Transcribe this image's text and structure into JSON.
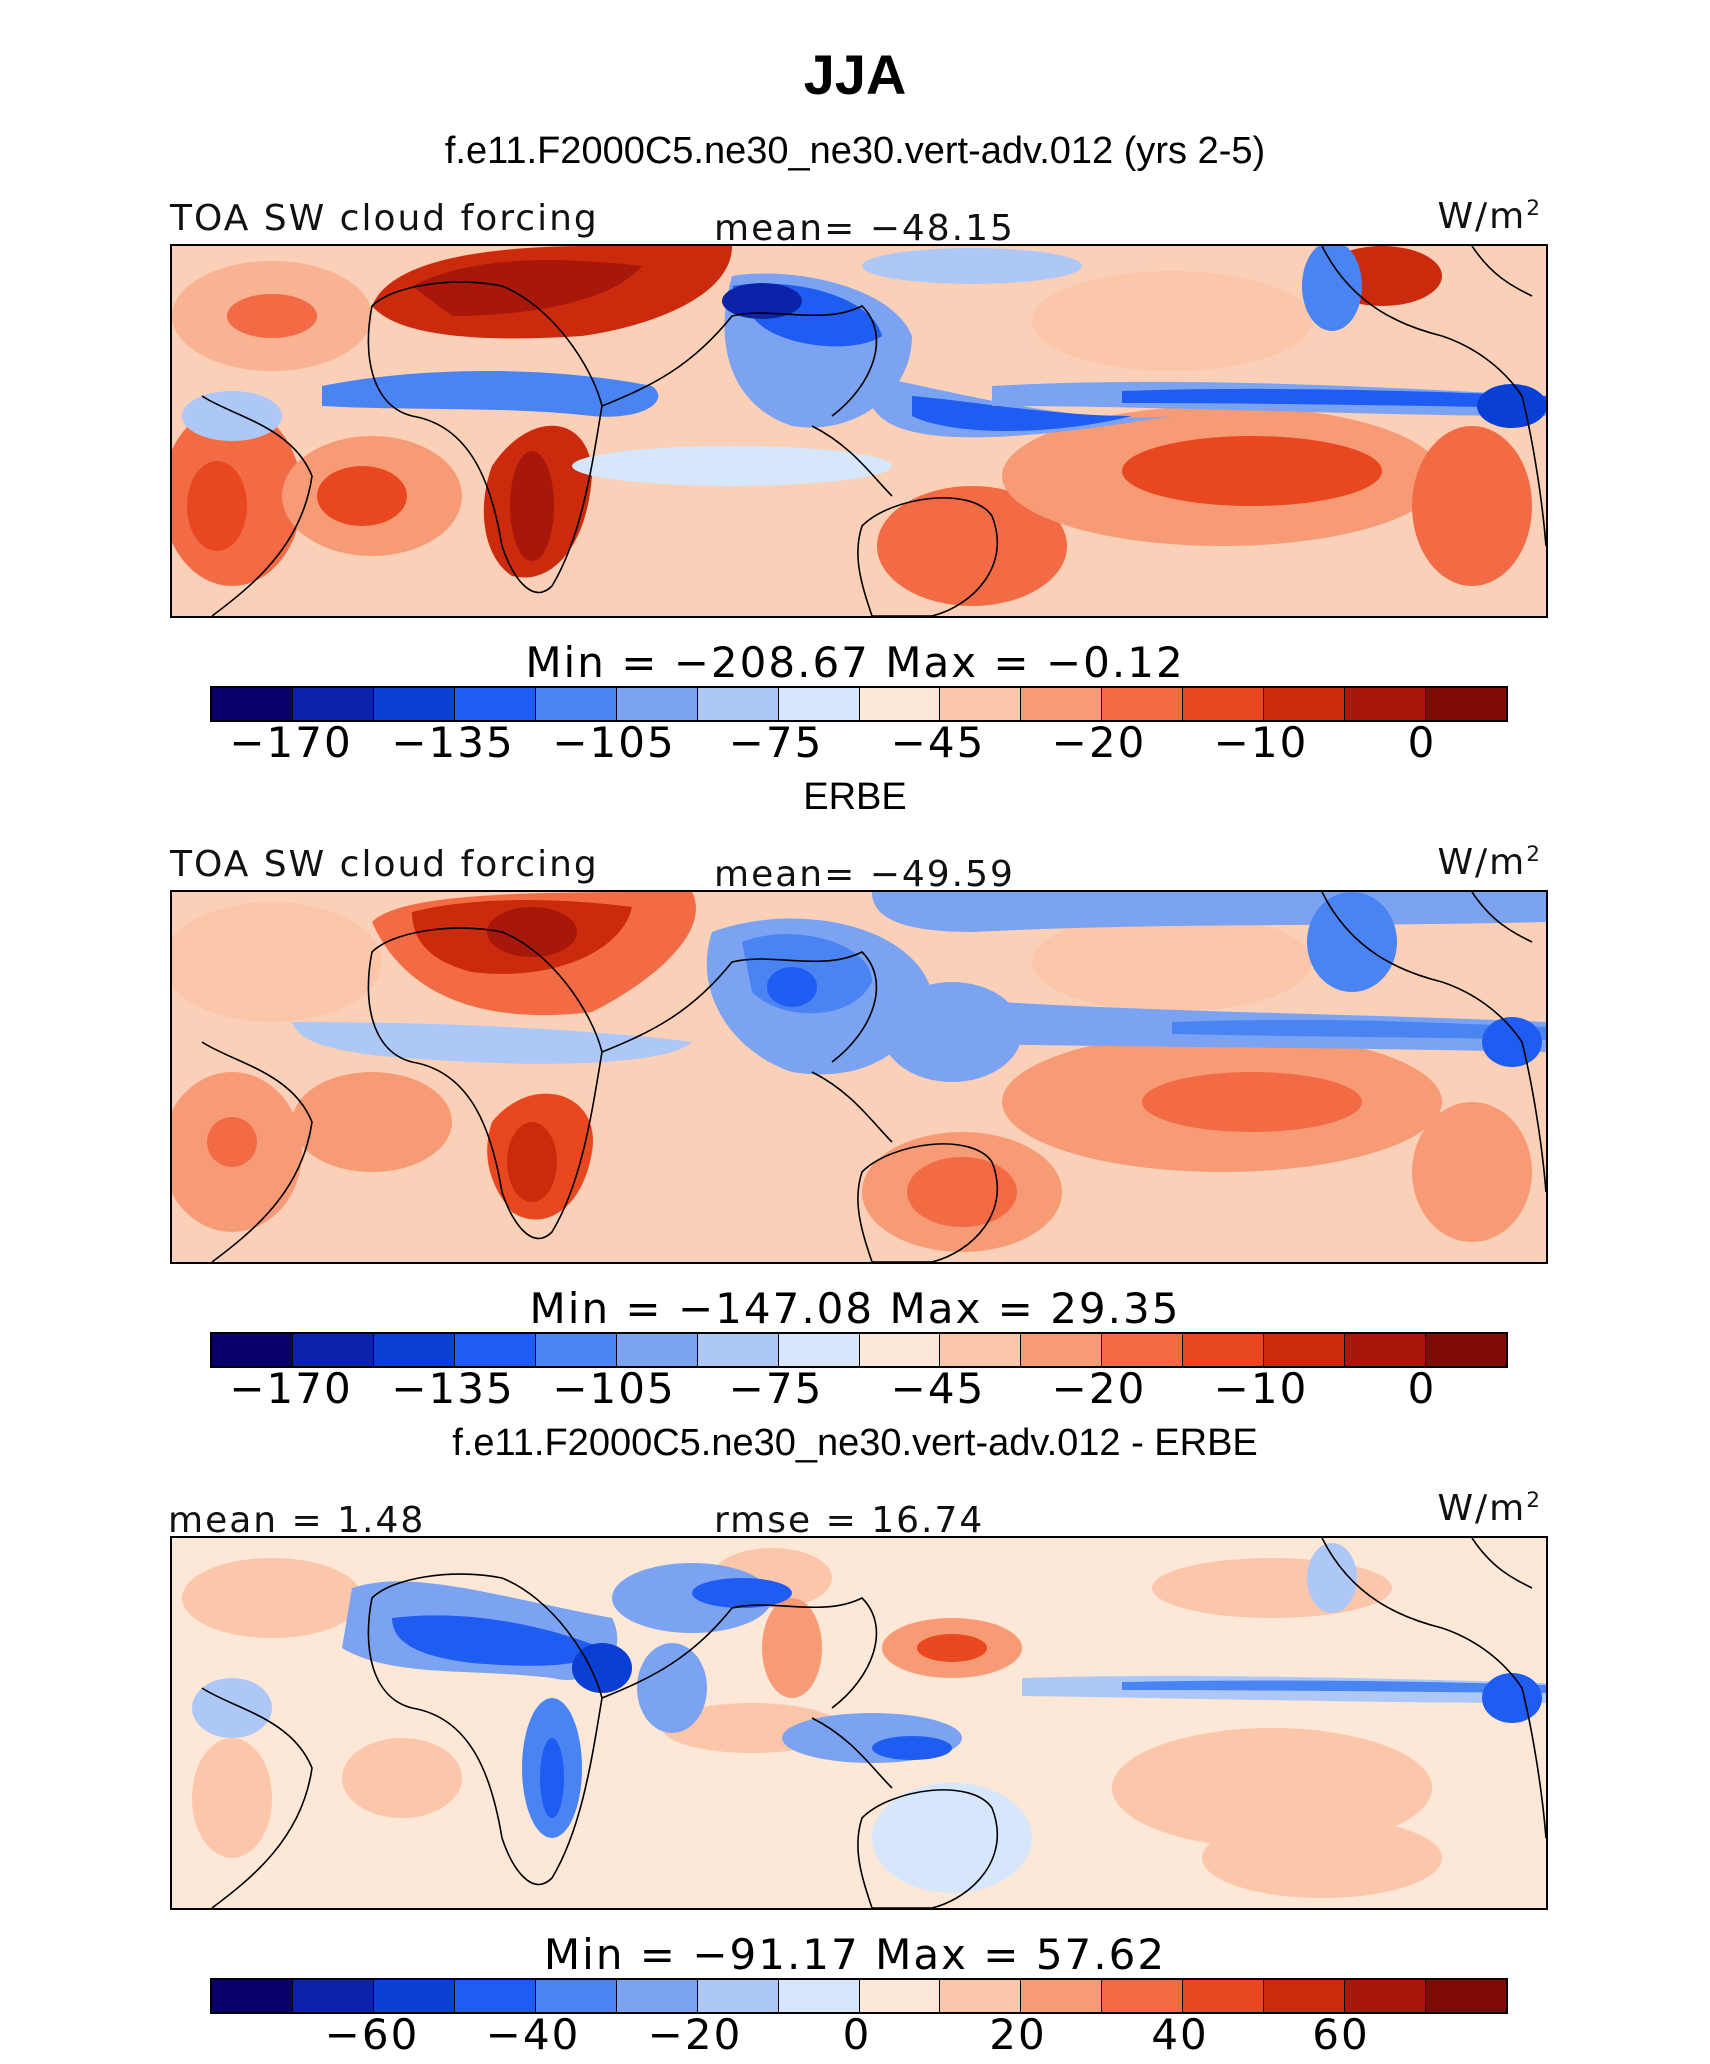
{
  "figure": {
    "title": "JJA",
    "colors": [
      "#08006b",
      "#0a23a8",
      "#0a3fd6",
      "#1f5cf2",
      "#4a83f2",
      "#7ba3f2",
      "#adc8f7",
      "#d6e6fb",
      "#fde7d6",
      "#fbc6aa",
      "#f79b76",
      "#f26b45",
      "#e8471f",
      "#cc2a0d",
      "#a8180a",
      "#800a05"
    ]
  },
  "panels": [
    {
      "case_title": "f.e11.F2000C5.ne30_ne30.vert-adv.012 (yrs 2-5)",
      "left_label": "TOA SW cloud forcing",
      "center_label": "mean= −48.15",
      "units": "W/m",
      "units_sup": "2",
      "minmax": "Min = −208.67 Max = −0.12",
      "colorbar_ticks": [
        "−170",
        "−135",
        "−105",
        "−75",
        "−45",
        "−20",
        "−10",
        "0"
      ]
    },
    {
      "case_title": "ERBE",
      "left_label": "TOA SW cloud forcing",
      "center_label": "mean= −49.59",
      "units": "W/m",
      "units_sup": "2",
      "minmax": "Min = −147.08 Max = 29.35",
      "colorbar_ticks": [
        "−170",
        "−135",
        "−105",
        "−75",
        "−45",
        "−20",
        "−10",
        "0"
      ]
    },
    {
      "case_title": "f.e11.F2000C5.ne30_ne30.vert-adv.012 - ERBE",
      "left_label": "mean = 1.48",
      "center_label": "rmse = 16.74",
      "units": "W/m",
      "units_sup": "2",
      "minmax": "Min = −91.17 Max = 57.62",
      "colorbar_ticks": [
        "−60",
        "−40",
        "−20",
        "0",
        "20",
        "40",
        "60"
      ]
    }
  ]
}
